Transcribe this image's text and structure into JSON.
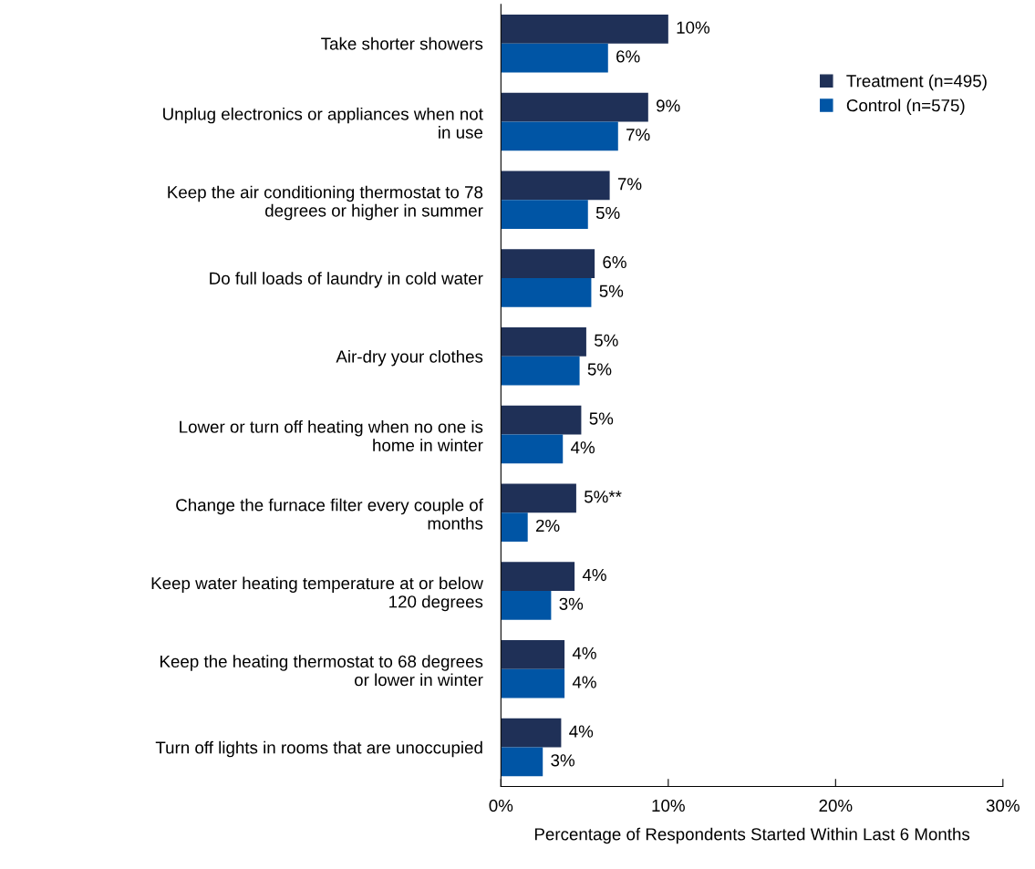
{
  "chart_data": {
    "type": "bar",
    "orientation": "horizontal",
    "xlabel": "Percentage of Respondents Started Within Last 6 Months",
    "categories": [
      "Take shorter showers",
      "Unplug electronics or appliances when not\nin use",
      "Keep the air conditioning thermostat to 78\ndegrees or higher in summer",
      "Do full loads of laundry in cold water",
      "Air-dry your clothes",
      "Lower or turn off heating when no one is\nhome in winter",
      "Change the furnace filter every couple of\nmonths",
      "Keep water heating temperature at or below\n120 degrees",
      "Keep the heating thermostat to 68 degrees\nor lower in winter",
      "Turn off lights in rooms that are unoccupied"
    ],
    "series": [
      {
        "name": "Treatment (n=495)",
        "color": "#1f3057",
        "values": [
          10.0,
          8.8,
          6.5,
          5.6,
          5.1,
          4.8,
          4.5,
          4.4,
          3.8,
          3.6
        ],
        "value_labels": [
          "10%",
          "9%",
          "7%",
          "6%",
          "5%",
          "5%",
          "5%**",
          "4%",
          "4%",
          "4%"
        ]
      },
      {
        "name": "Control (n=575)",
        "color": "#0055a5",
        "values": [
          6.4,
          7.0,
          5.2,
          5.4,
          4.7,
          3.7,
          1.6,
          3.0,
          3.8,
          2.5
        ],
        "value_labels": [
          "6%",
          "7%",
          "5%",
          "5%",
          "5%",
          "4%",
          "2%",
          "3%",
          "4%",
          "3%"
        ]
      }
    ],
    "xlim": [
      0,
      30
    ],
    "xticks": [
      {
        "value": 0,
        "label": "0%"
      },
      {
        "value": 10,
        "label": "10%"
      },
      {
        "value": 20,
        "label": "20%"
      },
      {
        "value": 30,
        "label": "30%"
      }
    ],
    "grid": false,
    "legend": "top right"
  }
}
